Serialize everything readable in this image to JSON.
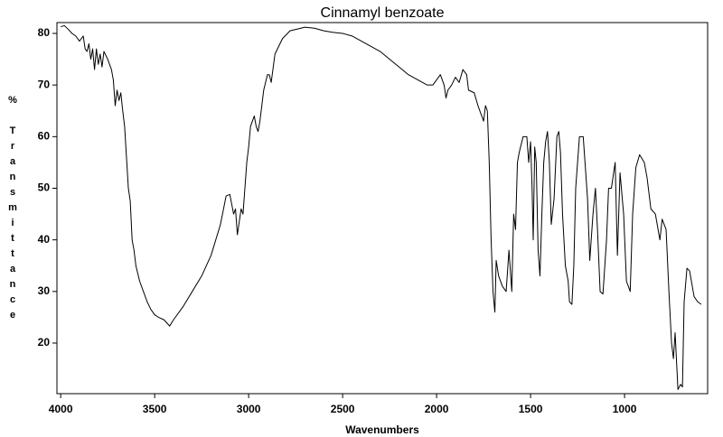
{
  "chart_data": {
    "type": "line",
    "title": "Cinnamyl benzoate",
    "x_label": "Wavenumbers",
    "y_label": "% Transmittance",
    "xlim": [
      4020,
      558
    ],
    "ylim": [
      10.2,
      82.1
    ],
    "xticks": [
      4000,
      3500,
      3000,
      2500,
      2000,
      1500,
      1000
    ],
    "yticks": [
      20,
      30,
      40,
      50,
      60,
      70,
      80
    ],
    "x": [
      4000,
      3980,
      3960,
      3940,
      3920,
      3900,
      3880,
      3870,
      3860,
      3850,
      3840,
      3830,
      3820,
      3810,
      3800,
      3790,
      3780,
      3770,
      3750,
      3730,
      3720,
      3710,
      3700,
      3690,
      3680,
      3670,
      3660,
      3650,
      3640,
      3630,
      3620,
      3610,
      3600,
      3580,
      3560,
      3540,
      3520,
      3500,
      3480,
      3450,
      3420,
      3400,
      3350,
      3300,
      3250,
      3200,
      3150,
      3120,
      3100,
      3080,
      3070,
      3060,
      3040,
      3030,
      3020,
      3010,
      3000,
      2990,
      2980,
      2970,
      2960,
      2950,
      2940,
      2920,
      2900,
      2890,
      2880,
      2860,
      2820,
      2780,
      2700,
      2650,
      2600,
      2550,
      2500,
      2450,
      2400,
      2350,
      2300,
      2250,
      2200,
      2150,
      2100,
      2050,
      2020,
      2000,
      1980,
      1960,
      1950,
      1940,
      1920,
      1900,
      1880,
      1860,
      1840,
      1830,
      1800,
      1780,
      1760,
      1750,
      1740,
      1730,
      1720,
      1710,
      1700,
      1690,
      1683,
      1670,
      1650,
      1630,
      1615,
      1600,
      1590,
      1580,
      1570,
      1560,
      1540,
      1520,
      1510,
      1500,
      1492,
      1486,
      1478,
      1470,
      1460,
      1450,
      1440,
      1430,
      1420,
      1410,
      1400,
      1390,
      1375,
      1360,
      1350,
      1341,
      1330,
      1315,
      1300,
      1293,
      1280,
      1270,
      1260,
      1240,
      1220,
      1197,
      1185,
      1168,
      1155,
      1144,
      1130,
      1115,
      1096,
      1085,
      1070,
      1050,
      1038,
      1024,
      1005,
      990,
      970,
      957,
      940,
      920,
      895,
      880,
      860,
      836,
      812,
      800,
      779,
      764,
      750,
      740,
      731,
      716,
      702,
      692,
      683,
      668,
      654,
      630,
      611,
      592
    ],
    "series": [
      {
        "color": "#000000",
        "values": [
          81.3,
          81.5,
          80.8,
          80,
          79.5,
          78.5,
          79.5,
          77,
          76.5,
          78,
          75,
          77,
          73,
          77,
          74,
          76,
          73.5,
          76.5,
          75,
          73,
          71,
          66,
          69,
          67,
          68.5,
          65,
          62,
          56,
          50,
          47.5,
          40,
          38,
          35,
          32,
          30,
          28,
          26.5,
          25.5,
          25,
          24.5,
          23.3,
          24.5,
          27,
          30,
          33,
          37,
          43,
          48.5,
          48.8,
          45,
          46,
          41,
          46,
          45,
          50,
          55,
          58,
          62,
          63,
          64,
          62,
          61,
          63,
          69,
          72,
          72,
          70.5,
          76,
          79,
          80.5,
          81.2,
          81,
          80.5,
          80.2,
          80,
          79.5,
          78.5,
          77.5,
          76.5,
          75,
          73.5,
          72,
          71,
          70,
          70,
          71,
          72,
          70,
          67.5,
          69,
          70,
          71.5,
          70.5,
          73,
          72,
          69,
          68.5,
          66,
          64,
          63,
          66,
          65,
          55,
          40,
          30,
          26,
          36,
          33,
          31,
          30,
          38,
          30,
          45,
          42,
          55,
          57,
          60,
          60,
          55,
          59,
          50,
          40,
          58,
          55,
          38,
          33,
          45,
          55,
          59,
          61,
          55,
          43,
          48,
          60,
          61,
          57,
          45,
          35,
          32,
          28,
          27.5,
          35,
          50,
          60,
          60,
          48,
          36,
          45,
          50,
          42,
          30,
          29.5,
          40,
          50,
          50,
          55,
          37,
          53,
          45,
          32,
          30,
          45,
          54,
          56.5,
          55,
          52,
          46,
          45,
          40,
          44,
          42,
          30,
          20,
          17,
          22,
          11,
          12,
          11.5,
          28,
          34.5,
          34,
          29,
          28,
          27.5
        ]
      }
    ]
  }
}
